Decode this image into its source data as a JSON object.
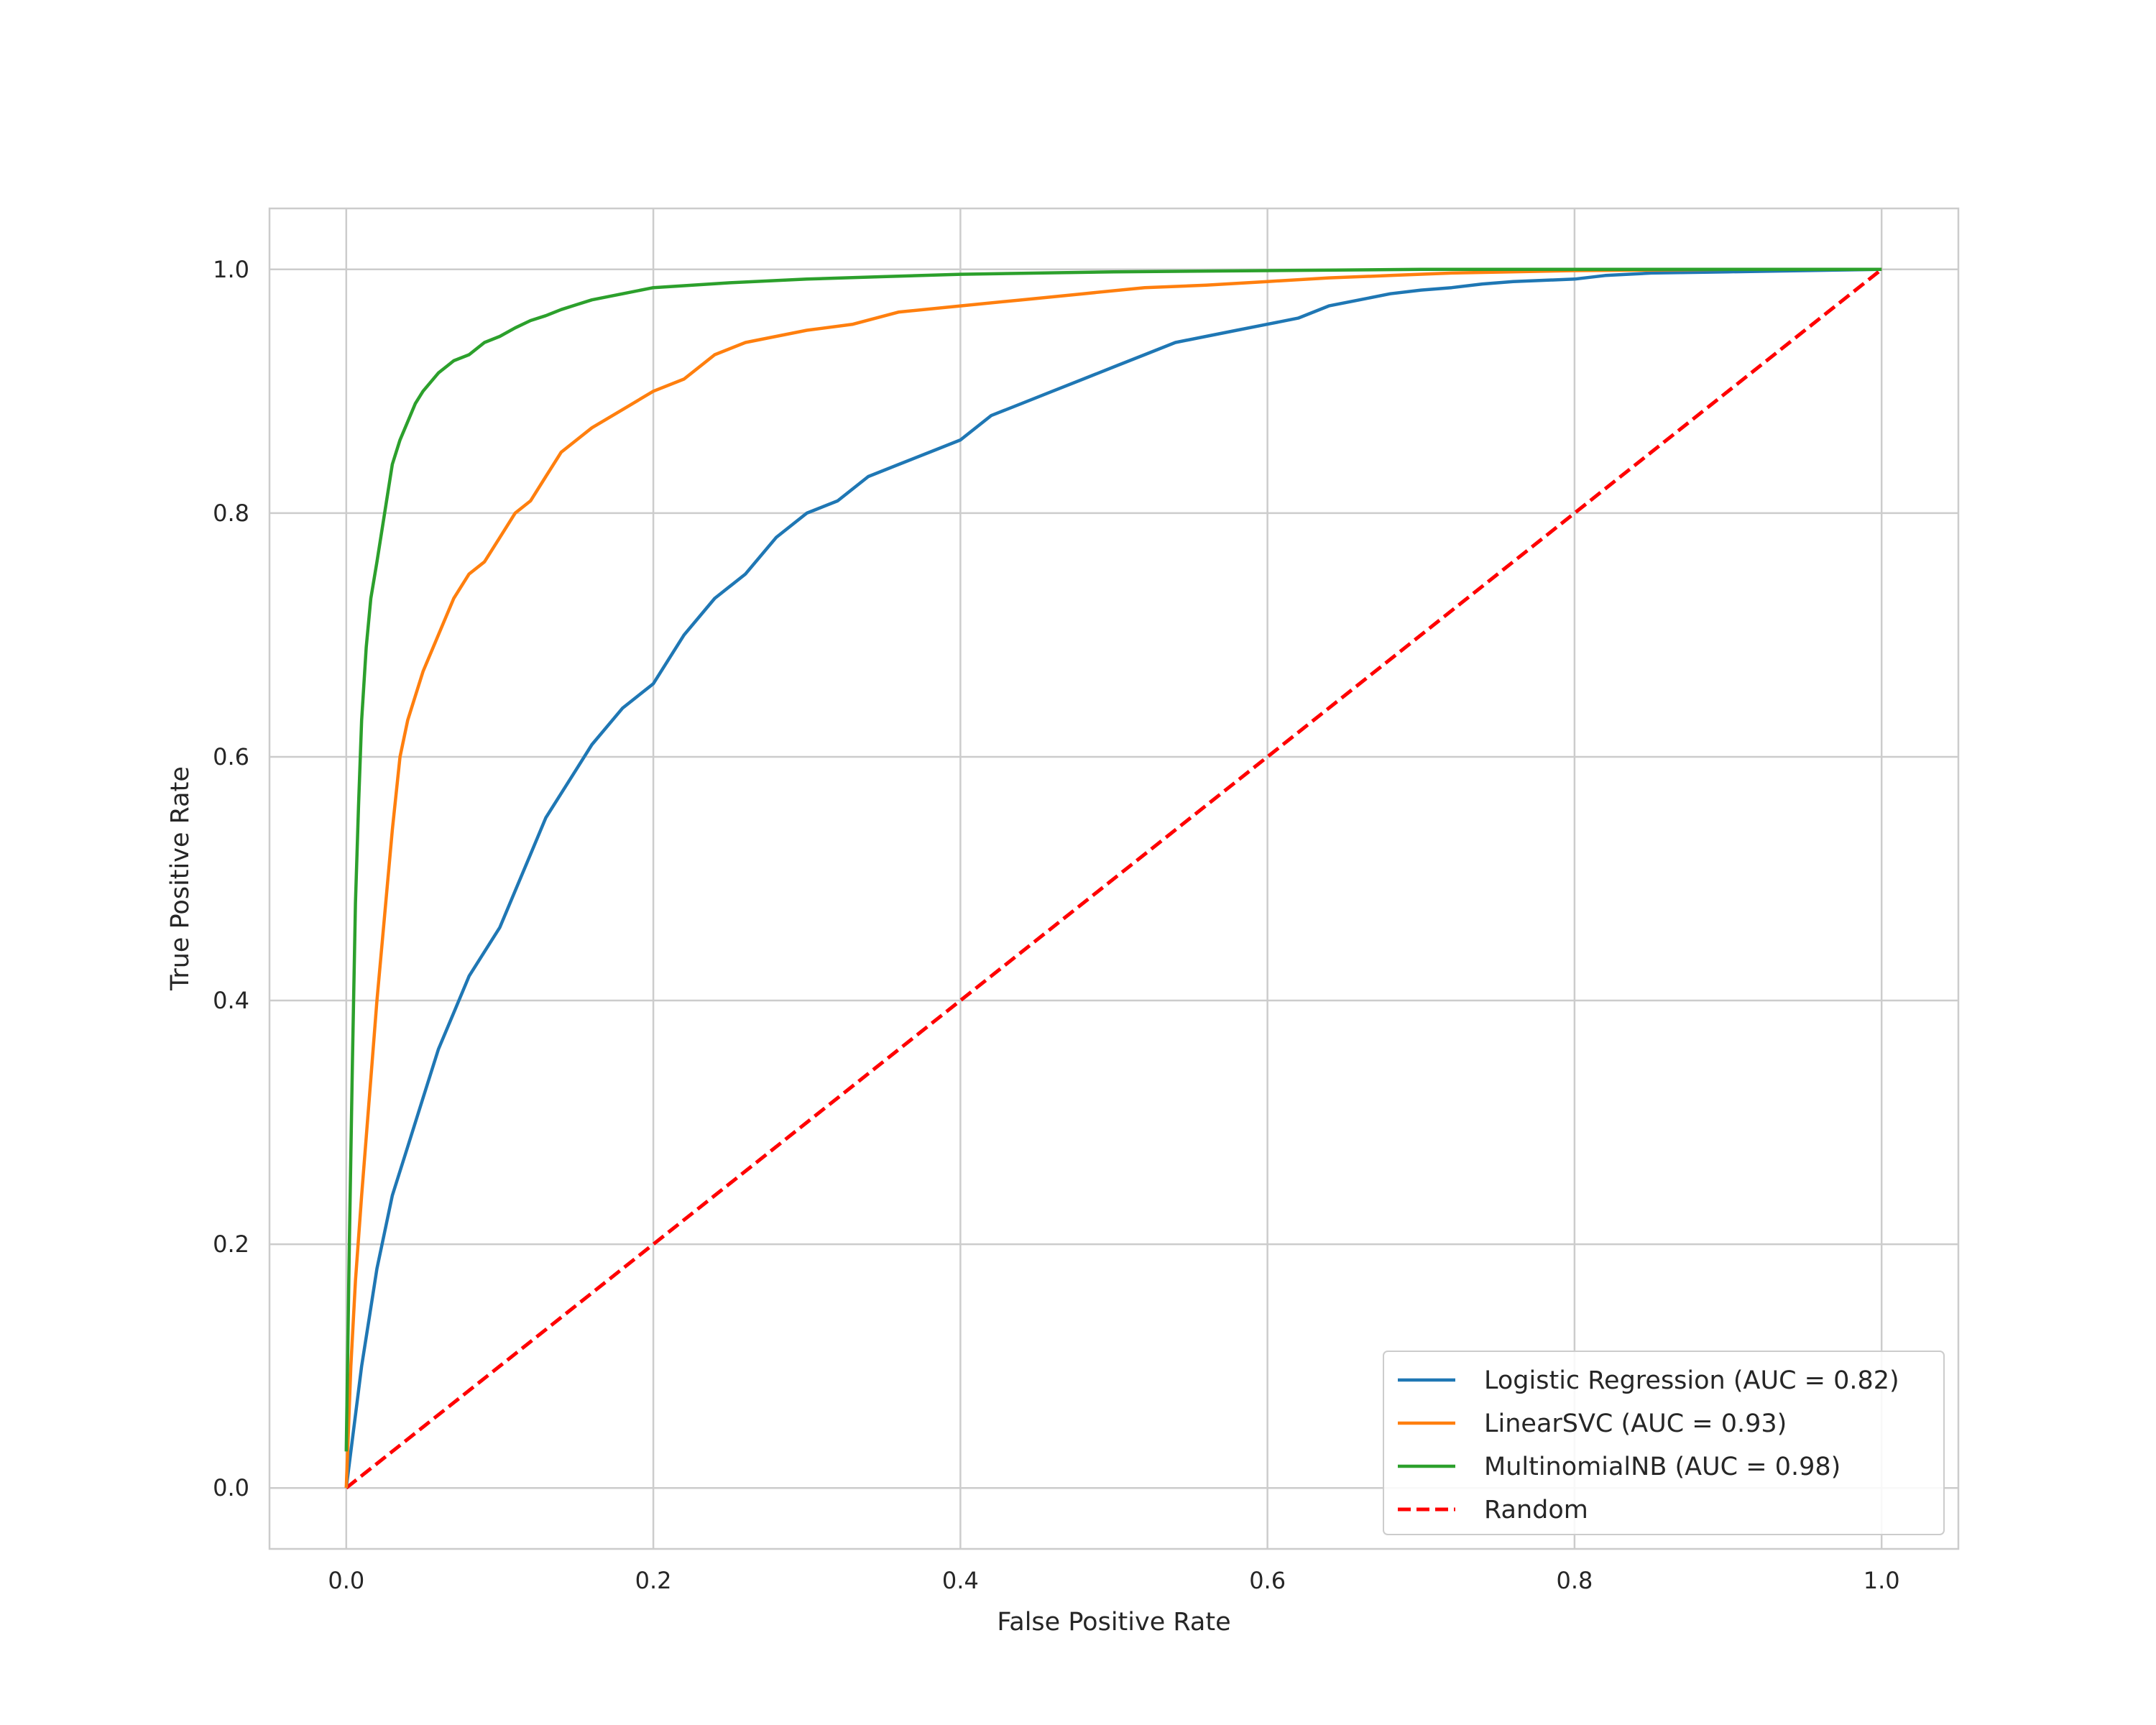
{
  "chart_data": {
    "type": "line",
    "title": "",
    "xlabel": "False Positive Rate",
    "ylabel": "True Positive Rate",
    "xlim": [
      -0.05,
      1.05
    ],
    "ylim": [
      -0.05,
      1.05
    ],
    "x_ticks": [
      0.0,
      0.2,
      0.4,
      0.6,
      0.8,
      1.0
    ],
    "y_ticks": [
      0.0,
      0.2,
      0.4,
      0.6,
      0.8,
      1.0
    ],
    "x_tick_labels": [
      "0.0",
      "0.2",
      "0.4",
      "0.6",
      "0.8",
      "1.0"
    ],
    "y_tick_labels": [
      "0.0",
      "0.2",
      "0.4",
      "0.6",
      "0.8",
      "1.0"
    ],
    "grid": true,
    "legend_position": "bottom-right",
    "series": [
      {
        "name": "Logistic Regression (AUC = 0.82)",
        "color": "#1f77b4",
        "style": "solid",
        "x": [
          0.0,
          0.005,
          0.01,
          0.015,
          0.02,
          0.025,
          0.03,
          0.04,
          0.05,
          0.06,
          0.07,
          0.08,
          0.09,
          0.1,
          0.11,
          0.12,
          0.13,
          0.14,
          0.15,
          0.16,
          0.18,
          0.2,
          0.22,
          0.24,
          0.26,
          0.28,
          0.3,
          0.32,
          0.34,
          0.36,
          0.38,
          0.4,
          0.42,
          0.44,
          0.46,
          0.48,
          0.5,
          0.52,
          0.54,
          0.56,
          0.58,
          0.6,
          0.62,
          0.64,
          0.66,
          0.68,
          0.7,
          0.72,
          0.74,
          0.76,
          0.78,
          0.8,
          0.82,
          0.85,
          0.9,
          0.95,
          1.0
        ],
        "y": [
          0.0,
          0.05,
          0.1,
          0.14,
          0.18,
          0.21,
          0.24,
          0.28,
          0.32,
          0.36,
          0.39,
          0.42,
          0.44,
          0.46,
          0.49,
          0.52,
          0.55,
          0.57,
          0.59,
          0.61,
          0.64,
          0.66,
          0.7,
          0.73,
          0.75,
          0.78,
          0.8,
          0.81,
          0.83,
          0.84,
          0.85,
          0.86,
          0.88,
          0.89,
          0.9,
          0.91,
          0.92,
          0.93,
          0.94,
          0.945,
          0.95,
          0.955,
          0.96,
          0.97,
          0.975,
          0.98,
          0.983,
          0.985,
          0.988,
          0.99,
          0.991,
          0.992,
          0.995,
          0.997,
          0.998,
          0.999,
          1.0
        ]
      },
      {
        "name": "LinearSVC (AUC = 0.93)",
        "color": "#ff7f0e",
        "style": "solid",
        "x": [
          0.0,
          0.003,
          0.006,
          0.01,
          0.015,
          0.02,
          0.025,
          0.03,
          0.035,
          0.04,
          0.05,
          0.06,
          0.07,
          0.08,
          0.09,
          0.1,
          0.11,
          0.12,
          0.13,
          0.14,
          0.15,
          0.16,
          0.18,
          0.2,
          0.22,
          0.24,
          0.26,
          0.28,
          0.3,
          0.33,
          0.36,
          0.4,
          0.44,
          0.48,
          0.52,
          0.56,
          0.6,
          0.64,
          0.68,
          0.72,
          0.8,
          0.9,
          1.0
        ],
        "y": [
          0.0,
          0.1,
          0.17,
          0.24,
          0.32,
          0.4,
          0.47,
          0.54,
          0.6,
          0.63,
          0.67,
          0.7,
          0.73,
          0.75,
          0.76,
          0.78,
          0.8,
          0.81,
          0.83,
          0.85,
          0.86,
          0.87,
          0.885,
          0.9,
          0.91,
          0.93,
          0.94,
          0.945,
          0.95,
          0.955,
          0.965,
          0.97,
          0.975,
          0.98,
          0.985,
          0.987,
          0.99,
          0.993,
          0.995,
          0.997,
          0.999,
          1.0,
          1.0
        ]
      },
      {
        "name": "MultinomialNB (AUC = 0.98)",
        "color": "#2ca02c",
        "style": "solid",
        "x": [
          0.0,
          0.002,
          0.004,
          0.006,
          0.008,
          0.01,
          0.013,
          0.016,
          0.02,
          0.025,
          0.03,
          0.035,
          0.04,
          0.045,
          0.05,
          0.06,
          0.07,
          0.08,
          0.09,
          0.1,
          0.11,
          0.12,
          0.13,
          0.14,
          0.15,
          0.16,
          0.18,
          0.2,
          0.25,
          0.3,
          0.35,
          0.4,
          0.5,
          0.6,
          0.7,
          0.8,
          0.9,
          1.0
        ],
        "y": [
          0.03,
          0.2,
          0.35,
          0.48,
          0.56,
          0.63,
          0.69,
          0.73,
          0.76,
          0.8,
          0.84,
          0.86,
          0.875,
          0.89,
          0.9,
          0.915,
          0.925,
          0.93,
          0.94,
          0.945,
          0.952,
          0.958,
          0.962,
          0.967,
          0.971,
          0.975,
          0.98,
          0.985,
          0.989,
          0.992,
          0.994,
          0.996,
          0.998,
          0.999,
          1.0,
          1.0,
          1.0,
          1.0
        ]
      },
      {
        "name": "Random",
        "color": "#ff0000",
        "style": "dashed",
        "x": [
          0.0,
          1.0
        ],
        "y": [
          0.0,
          1.0
        ]
      }
    ]
  }
}
